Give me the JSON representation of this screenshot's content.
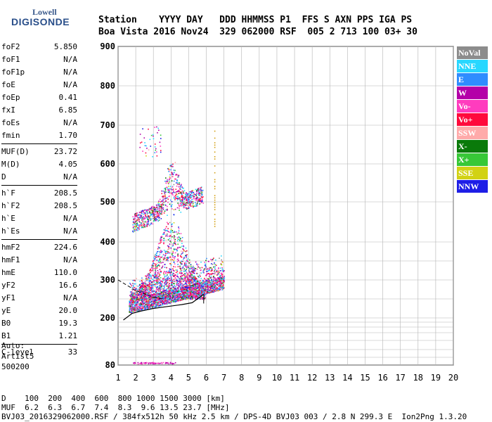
{
  "logo": {
    "line1": "Lowell",
    "line2": "DIGISONDE"
  },
  "header": {
    "row1": "Station    YYYY DAY   DDD HHMMSS P1  FFS S AXN PPS IGA PS",
    "row2": "Boa Vista 2016 Nov24  329 062000 RSF  005 2 713 100 03+ 30"
  },
  "params": [
    {
      "k": "foF2",
      "v": "5.850"
    },
    {
      "k": "foF1",
      "v": "N/A"
    },
    {
      "k": "foF1p",
      "v": "N/A"
    },
    {
      "k": "foE",
      "v": "N/A"
    },
    {
      "k": "foEp",
      "v": "0.41"
    },
    {
      "k": "fxI",
      "v": "6.85"
    },
    {
      "k": "foEs",
      "v": "N/A"
    },
    {
      "k": "fmin",
      "v": "1.70"
    },
    {
      "k": "MUF(D)",
      "v": "23.72",
      "sep": true
    },
    {
      "k": "M(D)",
      "v": "4.05"
    },
    {
      "k": "D",
      "v": "N/A"
    },
    {
      "k": "h`F",
      "v": "208.5",
      "sep": true
    },
    {
      "k": "h`F2",
      "v": "208.5"
    },
    {
      "k": "h`E",
      "v": "N/A"
    },
    {
      "k": "h`Es",
      "v": "N/A"
    },
    {
      "k": "hmF2",
      "v": "224.6",
      "sep": true
    },
    {
      "k": "hmF1",
      "v": "N/A"
    },
    {
      "k": "hmE",
      "v": "110.0"
    },
    {
      "k": "yF2",
      "v": "16.6"
    },
    {
      "k": "yF1",
      "v": "N/A"
    },
    {
      "k": "yE",
      "v": "20.0"
    },
    {
      "k": "B0",
      "v": "19.3"
    },
    {
      "k": "B1",
      "v": "1.21"
    },
    {
      "k": "C-level",
      "v": "33",
      "sep": true
    }
  ],
  "auto": {
    "l1": "Auto:",
    "l2": "Artist5",
    "l3": "500200"
  },
  "legend": [
    {
      "label": "NoVal",
      "color": "#8c8c8c"
    },
    {
      "label": "NNE",
      "color": "#28d7ff"
    },
    {
      "label": "E",
      "color": "#2f8cff"
    },
    {
      "label": "W",
      "color": "#b400a8"
    },
    {
      "label": "Vo-",
      "color": "#ff3cbe"
    },
    {
      "label": "Vo+",
      "color": "#ff0a3c"
    },
    {
      "label": "SSW",
      "color": "#ffaaaa"
    },
    {
      "label": "X-",
      "color": "#0a7a0a"
    },
    {
      "label": "X+",
      "color": "#37c837"
    },
    {
      "label": "SSE",
      "color": "#d2d214"
    },
    {
      "label": "NNW",
      "color": "#1e1ee6"
    }
  ],
  "chart_data": {
    "type": "scatter",
    "xlim": [
      1,
      20
    ],
    "ylim": [
      80,
      900
    ],
    "xticks": [
      "1",
      "2",
      "3",
      "4",
      "5",
      "6",
      "7",
      "8",
      "9",
      "10",
      "11",
      "12",
      "13",
      "14",
      "15",
      "16",
      "17",
      "18",
      "19",
      "20"
    ],
    "yticks": [
      {
        "value": 80,
        "label": "80"
      },
      {
        "value": 200,
        "label": "200"
      },
      {
        "value": 300,
        "label": "300"
      },
      {
        "value": 400,
        "label": "400"
      },
      {
        "value": 500,
        "label": "500"
      },
      {
        "value": 600,
        "label": "600"
      },
      {
        "value": 700,
        "label": "700"
      },
      {
        "value": 800,
        "label": "800"
      },
      {
        "value": 900,
        "label": "900"
      }
    ],
    "ygrid": [
      80,
      90,
      100,
      120,
      140,
      160,
      180,
      200,
      250,
      300,
      350,
      400,
      500,
      600,
      700,
      800,
      900
    ],
    "f_layer_trace": {
      "x": [
        1.3,
        1.8,
        2.3,
        3.0,
        3.8,
        4.6,
        5.2,
        5.85
      ],
      "y": [
        190,
        212,
        218,
        225,
        230,
        235,
        240,
        262
      ]
    },
    "profile_dashed": {
      "x": [
        1.0,
        2.0,
        3.0,
        3.5
      ],
      "y": [
        300,
        272,
        255,
        250
      ]
    },
    "foF2_marker": 5.85
  },
  "footer": {
    "row1": "D    100  200  400  600  800 1000 1500 3000 [km]",
    "row2": "MUF  6.2  6.3  6.7  7.4  8.3  9.6 13.5 23.7 [MHz]",
    "row3": "BVJ03_2016329062000.RSF / 384fx512h 50 kHz 2.5 km / DPS-4D BVJ03 003 / 2.8 N 299.3 E  Ion2Png 1.3.20"
  }
}
